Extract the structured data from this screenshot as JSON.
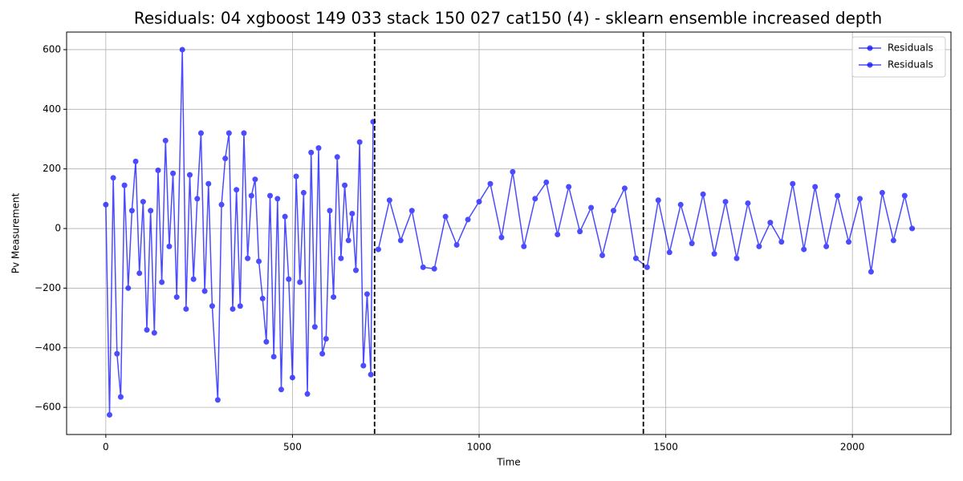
{
  "chart_data": {
    "type": "line",
    "title": "Residuals: 04 xgboost 149 033 stack 150 027 cat150 (4) - sklearn ensemble increased depth",
    "x_label": "Time",
    "y_label": "Pv Measurement",
    "series": [
      {
        "name": "Residuals",
        "color": "#0000ff",
        "x": [
          0,
          10,
          20,
          30,
          40,
          50,
          60,
          70,
          80,
          90,
          100,
          110,
          120,
          130,
          140,
          150,
          160,
          170,
          180,
          190,
          205,
          215,
          225,
          235,
          245,
          255,
          265,
          275,
          285,
          300,
          310,
          320,
          330,
          340,
          350,
          360,
          370,
          380,
          390,
          400,
          410,
          420,
          430,
          440,
          450,
          460,
          470,
          480,
          490,
          500,
          510,
          520,
          530,
          540,
          550,
          560,
          570,
          580,
          590,
          600,
          610,
          620,
          630,
          640,
          650,
          660,
          670,
          680,
          690,
          700,
          710,
          716
        ],
        "values": [
          80,
          -625,
          170,
          -420,
          -565,
          145,
          -200,
          60,
          225,
          -150,
          90,
          -340,
          60,
          -350,
          195,
          -180,
          295,
          -60,
          185,
          -230,
          600,
          -270,
          180,
          -170,
          100,
          320,
          -210,
          150,
          -260,
          -575,
          80,
          235,
          320,
          -270,
          130,
          -260,
          320,
          -100,
          110,
          165,
          -110,
          -235,
          -380,
          110,
          -430,
          100,
          -540,
          40,
          -170,
          -500,
          175,
          -180,
          120,
          -555,
          255,
          -330,
          270,
          -420,
          -370,
          60,
          -230,
          240,
          -100,
          145,
          -40,
          50,
          -140,
          290,
          -460,
          -220,
          -490,
          358
        ]
      },
      {
        "name": "Residuals",
        "color": "#0000ff",
        "x": [
          730,
          760,
          790,
          820,
          850,
          880,
          910,
          940,
          970,
          1000,
          1030,
          1060,
          1090,
          1120,
          1150,
          1180,
          1210,
          1240,
          1270,
          1300,
          1330,
          1360,
          1390,
          1420,
          1450,
          1480,
          1510,
          1540,
          1570,
          1600,
          1630,
          1660,
          1690,
          1720,
          1750,
          1780,
          1810,
          1840,
          1870,
          1900,
          1930,
          1960,
          1990,
          2020,
          2050,
          2080,
          2110,
          2140,
          2160
        ],
        "values": [
          -70,
          95,
          -40,
          60,
          -130,
          -135,
          40,
          -55,
          30,
          90,
          150,
          -30,
          190,
          -60,
          100,
          155,
          -20,
          140,
          -10,
          70,
          -90,
          60,
          135,
          -100,
          -130,
          95,
          -80,
          80,
          -50,
          115,
          -85,
          90,
          -100,
          85,
          -60,
          20,
          -45,
          150,
          -70,
          140,
          -60,
          110,
          -45,
          100,
          -145,
          120,
          -40,
          110,
          0
        ]
      }
    ],
    "vlines": [
      720,
      1440
    ],
    "xlim": [
      -105,
      2264
    ],
    "ylim": [
      -691,
      659
    ],
    "xticks": [
      0,
      500,
      1000,
      1500,
      2000
    ],
    "yticks": [
      {
        "value": -600,
        "label": "−600"
      },
      {
        "value": -400,
        "label": "−400"
      },
      {
        "value": -200,
        "label": "−200"
      },
      0,
      200,
      400,
      600
    ],
    "grid": true,
    "legend": "upper right"
  }
}
